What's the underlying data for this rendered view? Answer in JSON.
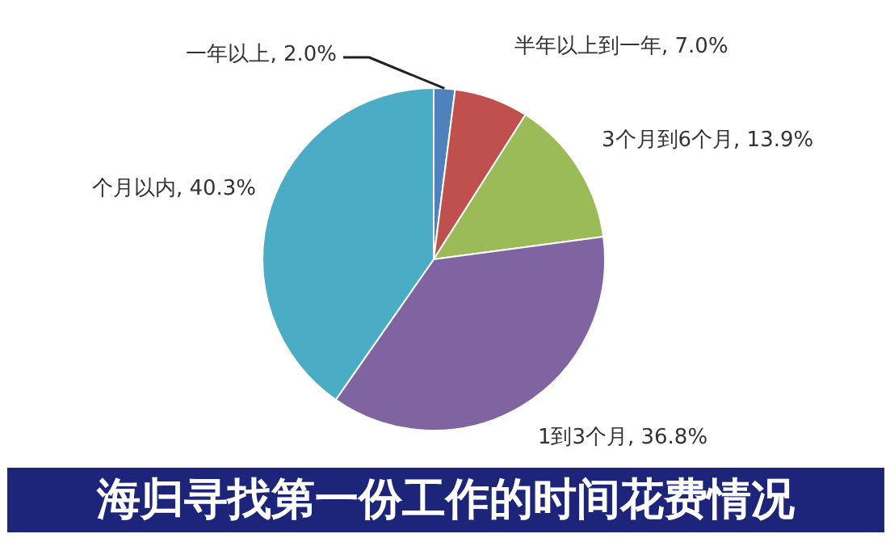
{
  "chart_data": {
    "type": "pie",
    "title": "海归寻找第一份工作的时间花费情况",
    "categories": [
      "一年以上",
      "半年以上到一年",
      "3个月到6个月",
      "1到3个月",
      "个月以内"
    ],
    "values": [
      2.0,
      7.0,
      13.9,
      36.8,
      40.3
    ],
    "value_labels": [
      "2.0%",
      "7.0%",
      "13.9%",
      "36.8%",
      "40.3%"
    ],
    "colors": [
      "#4f81bd",
      "#c0504d",
      "#9bbb59",
      "#8064a2",
      "#4bacc6"
    ]
  }
}
